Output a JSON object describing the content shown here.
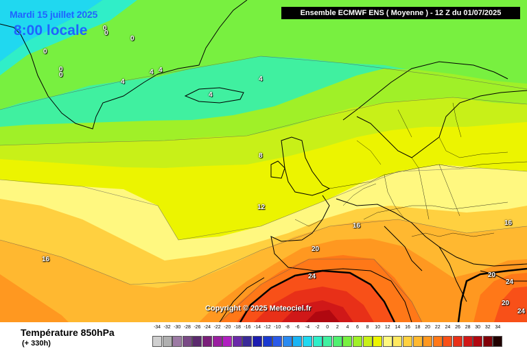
{
  "map": {
    "date": "Mardi 15 juillet 2025",
    "local_time": "8:00 locale",
    "model_header": "Ensemble ECMWF ENS  ( Moyenne )  -  12 Z du 01/07/2025",
    "copyright": "Copyright © 2025 Meteociel.fr",
    "isotherm_labels": [
      "0",
      "0",
      "0",
      "0",
      "0",
      "0",
      "4",
      "4",
      "4",
      "4",
      "4",
      "8",
      "12",
      "16",
      "16",
      "16",
      "20",
      "20",
      "20",
      "24",
      "24",
      "24"
    ]
  },
  "footer": {
    "variable_title": "Température 850hPa",
    "lead_time": "(+ 330h)"
  },
  "legend": {
    "ticks": [
      "-34",
      "-32",
      "-30",
      "-28",
      "-26",
      "-24",
      "-22",
      "-20",
      "-18",
      "-16",
      "-14",
      "-12",
      "-10",
      "-8",
      "-6",
      "-4",
      "-2",
      "0",
      "2",
      "4",
      "6",
      "8",
      "10",
      "12",
      "14",
      "16",
      "18",
      "20",
      "22",
      "24",
      "26",
      "28",
      "30",
      "32",
      "34"
    ],
    "colors": [
      "#d0d0d0",
      "#b0b0b0",
      "#9c7aa4",
      "#7a4a86",
      "#5c2a6e",
      "#7a1f7a",
      "#9a1fa0",
      "#b020c0",
      "#6b2aa8",
      "#3a2a98",
      "#1c1cb0",
      "#1a3ad0",
      "#2a5ae8",
      "#2a8af0",
      "#1ab4f4",
      "#20d8f0",
      "#30eec8",
      "#40f0a0",
      "#50f070",
      "#78f040",
      "#a0f028",
      "#c8f018",
      "#ecf400",
      "#fff880",
      "#ffe860",
      "#ffd040",
      "#ffb830",
      "#ff9820",
      "#ff7818",
      "#f85018",
      "#e83018",
      "#d01818",
      "#b00810",
      "#800008",
      "#200000"
    ]
  }
}
